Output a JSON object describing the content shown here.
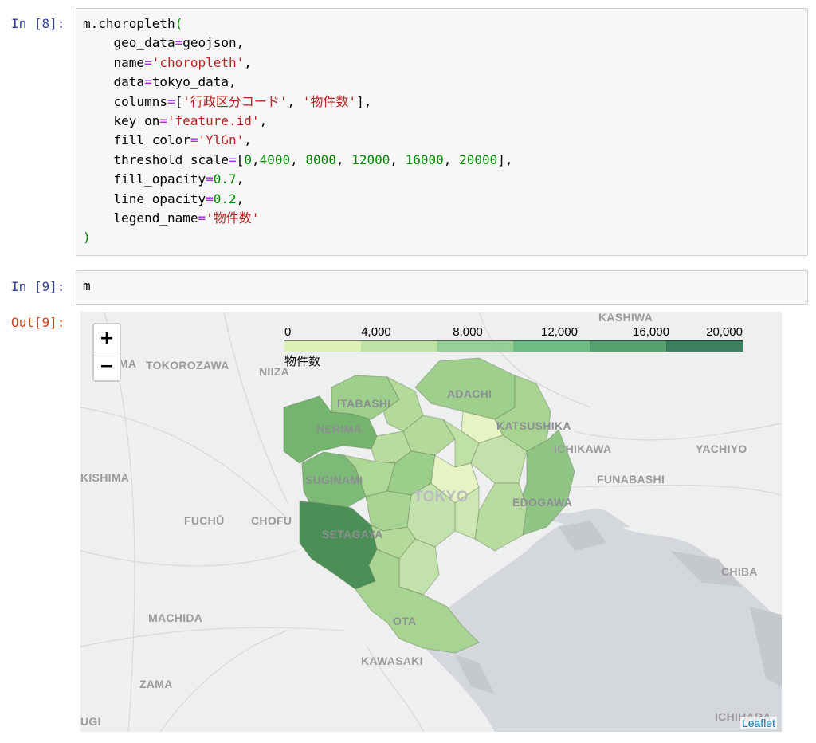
{
  "cells": [
    {
      "prompt": "In [8]:",
      "code_lines": [
        [
          {
            "t": "m.choropleth",
            "c": "kw"
          },
          {
            "t": "(",
            "c": "paren"
          }
        ],
        [
          {
            "t": "    geo_data",
            "c": "kw"
          },
          {
            "t": "=",
            "c": "op"
          },
          {
            "t": "geojson,",
            "c": "kw"
          }
        ],
        [
          {
            "t": "    name",
            "c": "kw"
          },
          {
            "t": "=",
            "c": "op"
          },
          {
            "t": "'choropleth'",
            "c": "str"
          },
          {
            "t": ",",
            "c": "kw"
          }
        ],
        [
          {
            "t": "    data",
            "c": "kw"
          },
          {
            "t": "=",
            "c": "op"
          },
          {
            "t": "tokyo_data,",
            "c": "kw"
          }
        ],
        [
          {
            "t": "    columns",
            "c": "kw"
          },
          {
            "t": "=",
            "c": "op"
          },
          {
            "t": "[",
            "c": "kw"
          },
          {
            "t": "'行政区分コード'",
            "c": "str"
          },
          {
            "t": ", ",
            "c": "kw"
          },
          {
            "t": "'物件数'",
            "c": "str"
          },
          {
            "t": "],",
            "c": "kw"
          }
        ],
        [
          {
            "t": "    key_on",
            "c": "kw"
          },
          {
            "t": "=",
            "c": "op"
          },
          {
            "t": "'feature.id'",
            "c": "str"
          },
          {
            "t": ",",
            "c": "kw"
          }
        ],
        [
          {
            "t": "    fill_color",
            "c": "kw"
          },
          {
            "t": "=",
            "c": "op"
          },
          {
            "t": "'YlGn'",
            "c": "str"
          },
          {
            "t": ",",
            "c": "kw"
          }
        ],
        [
          {
            "t": "    threshold_scale",
            "c": "kw"
          },
          {
            "t": "=",
            "c": "op"
          },
          {
            "t": "[",
            "c": "kw"
          },
          {
            "t": "0",
            "c": "num"
          },
          {
            "t": ",",
            "c": "kw"
          },
          {
            "t": "4000",
            "c": "num"
          },
          {
            "t": ", ",
            "c": "kw"
          },
          {
            "t": "8000",
            "c": "num"
          },
          {
            "t": ", ",
            "c": "kw"
          },
          {
            "t": "12000",
            "c": "num"
          },
          {
            "t": ", ",
            "c": "kw"
          },
          {
            "t": "16000",
            "c": "num"
          },
          {
            "t": ", ",
            "c": "kw"
          },
          {
            "t": "20000",
            "c": "num"
          },
          {
            "t": "],",
            "c": "kw"
          }
        ],
        [
          {
            "t": "    fill_opacity",
            "c": "kw"
          },
          {
            "t": "=",
            "c": "op"
          },
          {
            "t": "0.7",
            "c": "num"
          },
          {
            "t": ",",
            "c": "kw"
          }
        ],
        [
          {
            "t": "    line_opacity",
            "c": "kw"
          },
          {
            "t": "=",
            "c": "op"
          },
          {
            "t": "0.2",
            "c": "num"
          },
          {
            "t": ",",
            "c": "kw"
          }
        ],
        [
          {
            "t": "    legend_name",
            "c": "kw"
          },
          {
            "t": "=",
            "c": "op"
          },
          {
            "t": "'物件数'",
            "c": "str"
          }
        ],
        [
          {
            "t": ")",
            "c": "paren"
          }
        ]
      ]
    },
    {
      "prompt": "In [9]:",
      "code_lines": [
        [
          {
            "t": "m",
            "c": "kw"
          }
        ]
      ]
    }
  ],
  "output": {
    "prompt": "Out[9]:",
    "zoom_in": "+",
    "zoom_out": "−",
    "attribution": "Leaflet",
    "legend": {
      "title": "物件数",
      "ticks": [
        "0",
        "4,000",
        "8,000",
        "12,000",
        "16,000",
        "20,000"
      ],
      "colors": [
        "#d9f0a3",
        "#addd8e",
        "#78c679",
        "#41ab5d",
        "#238443",
        "#005a32"
      ]
    },
    "places": {
      "kashiwa": "KASHIWA",
      "tokorozawa": "TOKOROZAWA",
      "niiza": "NIIZA",
      "adachi": "ADACHI",
      "itabashi": "ITABASHI",
      "katsushika": "KATSUSHIKA",
      "nerima": "NERIMA",
      "ichikawa": "ICHIKAWA",
      "yachiyo": "YACHIYO",
      "kishima": "KISHIMA",
      "suginami": "SUGINAMI",
      "funabashi": "FUNABASHI",
      "tokyo": "TOKYO",
      "edogawa": "EDOGAWA",
      "fuchu": "FUCHŪ",
      "chofu": "CHOFU",
      "setagaya": "SETAGAYA",
      "chiba": "CHIBA",
      "machida": "MACHIDA",
      "ota": "OTA",
      "kawasaki": "KAWASAKI",
      "zama": "ZAMA",
      "ichihara": "ICHIHARA",
      "ugi": "UGI",
      "ma": "MA"
    }
  }
}
